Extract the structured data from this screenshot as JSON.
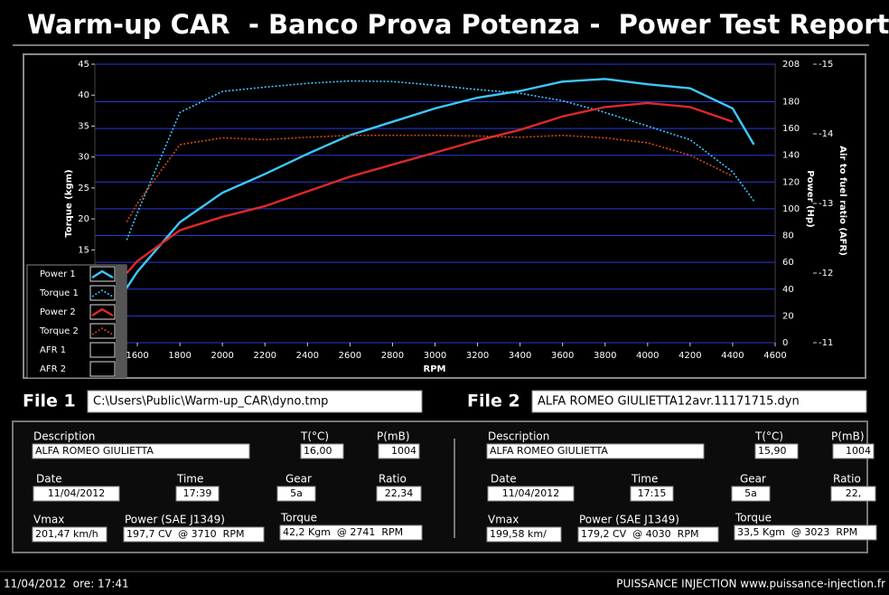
{
  "header": {
    "title": "Warm-up CAR  - Banco Prova Potenza -  Power Test Report"
  },
  "chart_data": {
    "type": "line",
    "x_label": "RPM",
    "y_label": "Torque (kgm)",
    "y2_label": "Power (Hp)",
    "y3_label": "Air to fuel ratio (AFR)",
    "x": [
      1550,
      1600,
      1800,
      2000,
      2200,
      2400,
      2600,
      2800,
      3000,
      3200,
      3400,
      3600,
      3800,
      4000,
      4200,
      4400,
      4500
    ],
    "xlim": [
      1400,
      4600
    ],
    "xticks": [
      1600,
      1800,
      2000,
      2200,
      2400,
      2600,
      2800,
      3000,
      3200,
      3400,
      3600,
      3800,
      4000,
      4200,
      4400,
      4600
    ],
    "ylim": [
      0,
      45
    ],
    "yticks": [
      15,
      20,
      25,
      30,
      35,
      40,
      45
    ],
    "y2lim": [
      0,
      208
    ],
    "y2ticks": [
      0,
      20,
      40,
      60,
      80,
      100,
      120,
      140,
      160,
      180,
      208
    ],
    "y3lim": [
      -11,
      -15
    ],
    "y3ticks": [
      -11,
      -12,
      -13,
      -14,
      -15
    ],
    "grid": true,
    "grid_axis": "y2",
    "legend": "bottom-left",
    "series": [
      {
        "name": "Power 1",
        "color": "#3ec8ff",
        "line_style": "solid",
        "axis": "y2",
        "values": [
          41,
          53,
          90,
          112,
          126,
          141,
          155,
          165,
          175,
          183,
          188,
          195,
          197,
          193,
          190,
          175,
          148
        ]
      },
      {
        "name": "Torque 1",
        "color": "#3ec8ff",
        "line_style": "dotted",
        "axis": "y",
        "values": [
          16.6,
          21,
          37.2,
          40.6,
          41.3,
          41.9,
          42.3,
          42.2,
          41.6,
          40.9,
          40.3,
          39.1,
          37.2,
          35,
          32.8,
          27.6,
          22.9
        ]
      },
      {
        "name": "Power 2",
        "color": "#e02828",
        "line_style": "solid",
        "axis": "y2",
        "values": [
          52,
          61,
          84,
          94,
          102,
          113,
          124,
          133,
          142,
          151,
          159,
          169,
          176,
          179,
          176,
          165,
          null
        ]
      },
      {
        "name": "Torque 2",
        "color": "#d04a20",
        "line_style": "dotted",
        "axis": "y",
        "values": [
          19.5,
          22.5,
          32,
          33.1,
          32.8,
          33.2,
          33.5,
          33.5,
          33.5,
          33.4,
          33.2,
          33.5,
          33.1,
          32.3,
          30.3,
          26.9,
          null
        ]
      },
      {
        "name": "AFR 1",
        "axis": "y3",
        "values": [
          null,
          null,
          null,
          null,
          null,
          null,
          null,
          null,
          null,
          null,
          null,
          null,
          null,
          null,
          null,
          null,
          null
        ]
      },
      {
        "name": "AFR 2",
        "axis": "y3",
        "values": [
          null,
          null,
          null,
          null,
          null,
          null,
          null,
          null,
          null,
          null,
          null,
          null,
          null,
          null,
          null,
          null,
          null
        ]
      }
    ]
  },
  "files": [
    {
      "label": "File 1",
      "path": "C:\\Users\\Public\\Warm-up_CAR\\dyno.tmp",
      "description_label": "Description",
      "description": "ALFA ROMEO GIULIETTA",
      "t_label": "T(°C)",
      "t": "16,00",
      "p_label": "P(mB)",
      "p": "1004",
      "date_label": "Date",
      "date": "11/04/2012",
      "time_label": "Time",
      "time": "17:39",
      "gear_label": "Gear",
      "gear": "5a",
      "ratio_label": "Ratio",
      "ratio": "22,34",
      "vmax_label": "Vmax",
      "vmax": "201,47 km/h",
      "power_label": "Power (SAE J1349)",
      "power": "197,7 CV  @ 3710  RPM",
      "torque_label": "Torque",
      "torque": "42,2 Kgm  @ 2741  RPM"
    },
    {
      "label": "File 2",
      "path": "ALFA ROMEO GIULIETTA12avr.11171715.dyn",
      "description_label": "Description",
      "description": "ALFA ROMEO GIULIETTA",
      "t_label": "T(°C)",
      "t": "15,90",
      "p_label": "P(mB)",
      "p": "1004",
      "date_label": "Date",
      "date": "11/04/2012",
      "time_label": "Time",
      "time": "17:15",
      "gear_label": "Gear",
      "gear": "5a",
      "ratio_label": "Ratio",
      "ratio": "22,",
      "vmax_label": "Vmax",
      "vmax": "199,58 km/",
      "power_label": "Power (SAE J1349)",
      "power": "179,2 CV  @ 4030  RPM",
      "torque_label": "Torque",
      "torque": "33,5 Kgm  @ 3023  RPM"
    }
  ],
  "footer": {
    "left": "11/04/2012  ore: 17:41",
    "right": "PUISSANCE INJECTION www.puissance-injection.fr"
  }
}
